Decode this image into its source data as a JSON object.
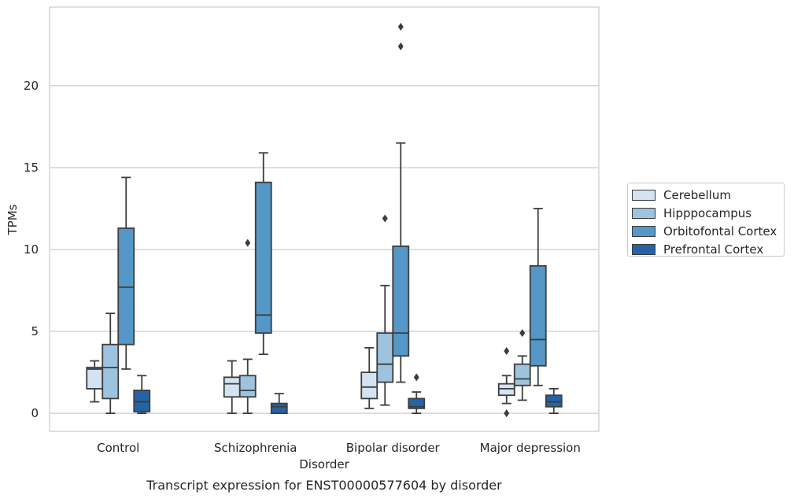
{
  "chart_data": {
    "type": "box",
    "title": "Transcript expression for ENST00000577604 by disorder",
    "xlabel": "Disorder",
    "ylabel": "TPMs",
    "ylim": [
      -1.1,
      24.8
    ],
    "yticks": [
      0,
      5,
      10,
      15,
      20
    ],
    "grid": "horizontal",
    "legend_position": "right",
    "categories": [
      "Control",
      "Schizophrenia",
      "Bipolar disorder",
      "Major depression"
    ],
    "series": [
      {
        "name": "Cerebellum",
        "color": "#d4e3f2",
        "boxes": [
          {
            "category": "Control",
            "whislo": 0.7,
            "q1": 1.5,
            "med": 2.7,
            "q3": 2.8,
            "whishi": 3.2,
            "fliers": []
          },
          {
            "category": "Schizophrenia",
            "whislo": 0.0,
            "q1": 1.0,
            "med": 1.8,
            "q3": 2.2,
            "whishi": 3.2,
            "fliers": []
          },
          {
            "category": "Bipolar disorder",
            "whislo": 0.3,
            "q1": 0.9,
            "med": 1.6,
            "q3": 2.5,
            "whishi": 4.0,
            "fliers": []
          },
          {
            "category": "Major depression",
            "whislo": 0.6,
            "q1": 1.1,
            "med": 1.5,
            "q3": 1.8,
            "whishi": 2.3,
            "fliers": [
              3.8,
              0.0
            ]
          }
        ]
      },
      {
        "name": "Hipppocampus",
        "color": "#9dc3df",
        "boxes": [
          {
            "category": "Control",
            "whislo": 0.0,
            "q1": 0.9,
            "med": 2.8,
            "q3": 4.2,
            "whishi": 6.1,
            "fliers": []
          },
          {
            "category": "Schizophrenia",
            "whislo": 0.0,
            "q1": 1.0,
            "med": 1.4,
            "q3": 2.3,
            "whishi": 3.3,
            "fliers": [
              10.4
            ]
          },
          {
            "category": "Bipolar disorder",
            "whislo": 0.5,
            "q1": 1.9,
            "med": 3.0,
            "q3": 4.9,
            "whishi": 7.8,
            "fliers": [
              11.9
            ]
          },
          {
            "category": "Major depression",
            "whislo": 0.8,
            "q1": 1.7,
            "med": 2.1,
            "q3": 3.0,
            "whishi": 3.5,
            "fliers": [
              4.9
            ]
          }
        ]
      },
      {
        "name": "Orbitofontal Cortex",
        "color": "#5597c6",
        "boxes": [
          {
            "category": "Control",
            "whislo": 2.7,
            "q1": 4.2,
            "med": 7.7,
            "q3": 11.3,
            "whishi": 14.4,
            "fliers": []
          },
          {
            "category": "Schizophrenia",
            "whislo": 3.6,
            "q1": 4.9,
            "med": 6.0,
            "q3": 14.1,
            "whishi": 15.9,
            "fliers": []
          },
          {
            "category": "Bipolar disorder",
            "whislo": 1.9,
            "q1": 3.5,
            "med": 4.9,
            "q3": 10.2,
            "whishi": 16.5,
            "fliers": [
              23.6,
              22.4
            ]
          },
          {
            "category": "Major depression",
            "whislo": 1.7,
            "q1": 2.9,
            "med": 4.5,
            "q3": 9.0,
            "whishi": 12.5,
            "fliers": []
          }
        ]
      },
      {
        "name": "Prefrontal Cortex",
        "color": "#2563a6",
        "boxes": [
          {
            "category": "Control",
            "whislo": 0.0,
            "q1": 0.1,
            "med": 0.7,
            "q3": 1.4,
            "whishi": 2.3,
            "fliers": []
          },
          {
            "category": "Schizophrenia",
            "whislo": 0.0,
            "q1": 0.0,
            "med": 0.4,
            "q3": 0.6,
            "whishi": 1.2,
            "fliers": []
          },
          {
            "category": "Bipolar disorder",
            "whislo": 0.0,
            "q1": 0.3,
            "med": 0.4,
            "q3": 0.9,
            "whishi": 1.3,
            "fliers": [
              2.2
            ]
          },
          {
            "category": "Major depression",
            "whislo": 0.0,
            "q1": 0.4,
            "med": 0.7,
            "q3": 1.1,
            "whishi": 1.5,
            "fliers": []
          }
        ]
      }
    ]
  }
}
